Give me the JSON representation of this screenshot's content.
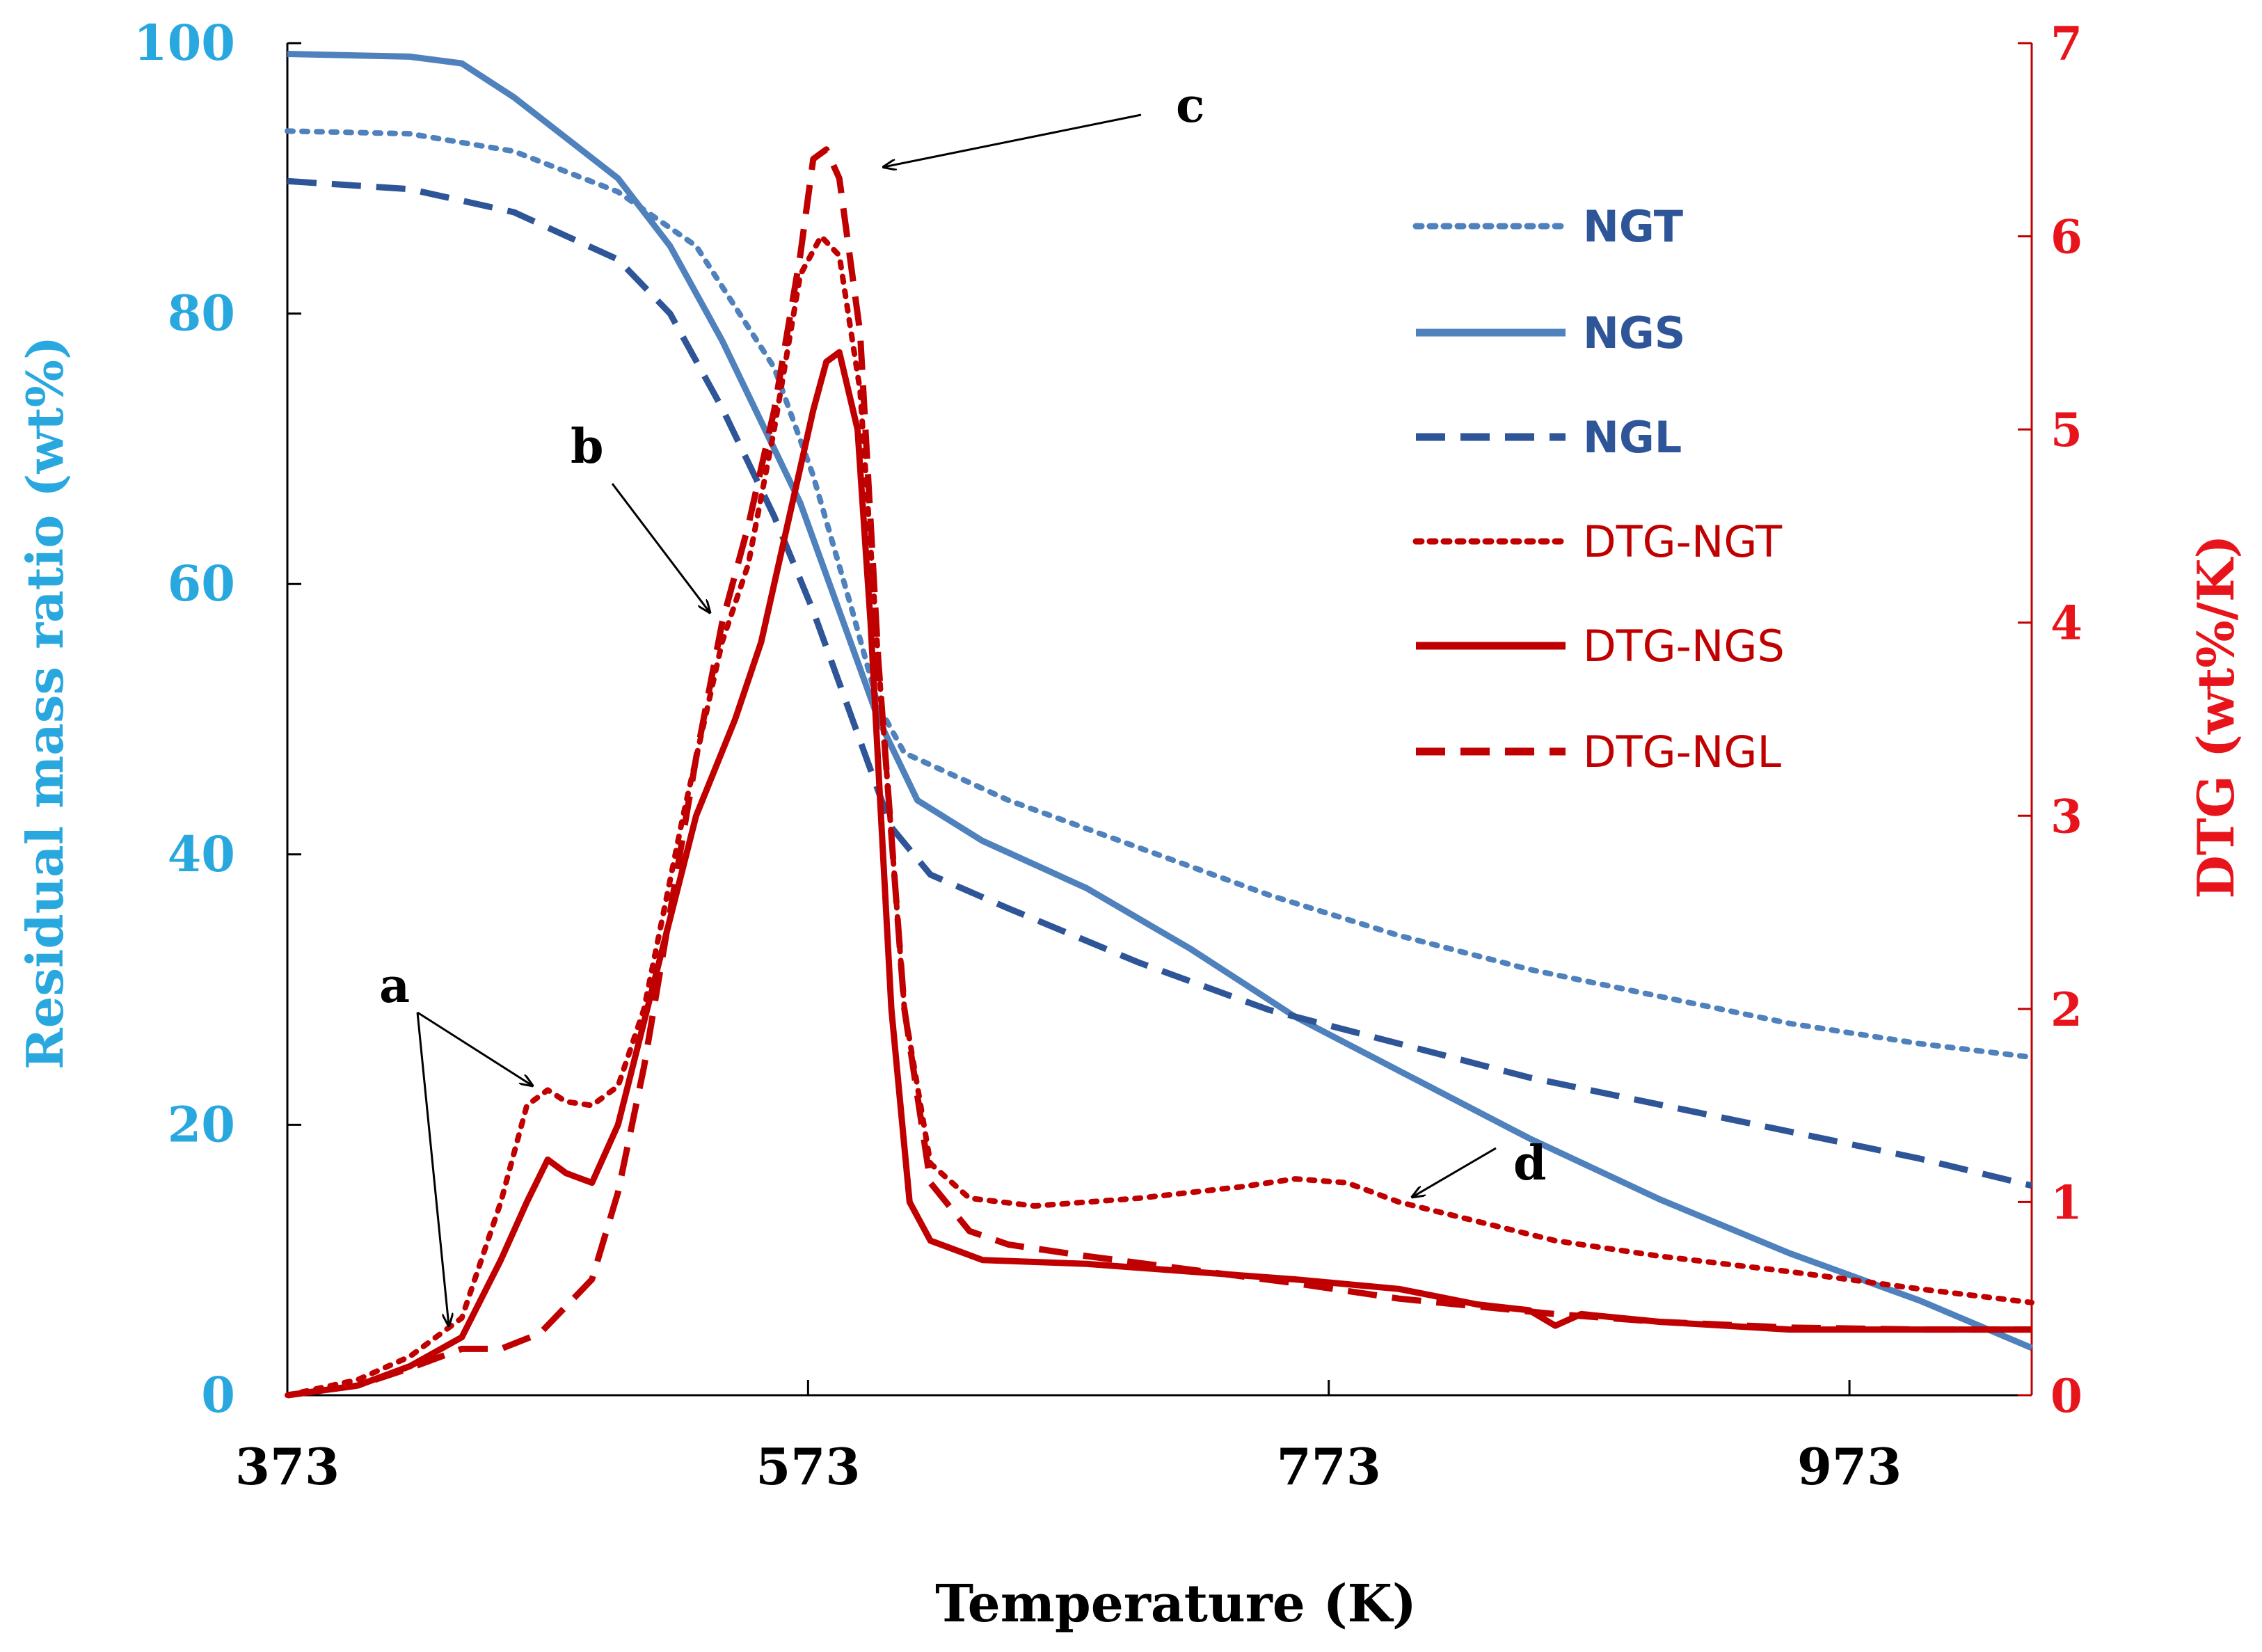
{
  "chart_data": {
    "type": "line",
    "xlabel": "Temperature (K)",
    "ylabel_left": "Residual mass ratio (wt%)",
    "ylabel_right": "DTG (wt%/K)",
    "xlim": [
      373,
      1043
    ],
    "ylim_left": [
      0,
      100
    ],
    "ylim_right": [
      0,
      7
    ],
    "x_ticks": [
      373,
      573,
      773,
      973
    ],
    "y_left_ticks": [
      0,
      20,
      40,
      60,
      80,
      100
    ],
    "y_right_ticks": [
      0,
      1,
      2,
      3,
      4,
      5,
      6,
      7
    ],
    "grid": false,
    "legend_position": "top-right",
    "colors": {
      "tg": "#4f81bd",
      "tg_dark": "#2e5597",
      "dtg": "#c00000",
      "left_axis": "#29a8e0",
      "right_axis": "#e8141b"
    },
    "series": [
      {
        "name": "NGT",
        "axis": "left",
        "style": "dotted",
        "color": "#4f81bd",
        "points": [
          [
            373,
            93.5
          ],
          [
            420,
            93.3
          ],
          [
            460,
            92
          ],
          [
            500,
            89
          ],
          [
            530,
            85
          ],
          [
            560,
            76
          ],
          [
            575,
            68
          ],
          [
            590,
            58
          ],
          [
            600,
            51
          ],
          [
            610,
            47.5
          ],
          [
            650,
            44
          ],
          [
            700,
            40.5
          ],
          [
            750,
            37
          ],
          [
            800,
            34
          ],
          [
            850,
            31.5
          ],
          [
            900,
            29.5
          ],
          [
            950,
            27.5
          ],
          [
            1000,
            26
          ],
          [
            1043,
            25
          ]
        ]
      },
      {
        "name": "NGS",
        "axis": "left",
        "style": "solid",
        "color": "#4f81bd",
        "points": [
          [
            373,
            99.2
          ],
          [
            420,
            99
          ],
          [
            440,
            98.5
          ],
          [
            460,
            96
          ],
          [
            480,
            93
          ],
          [
            500,
            90
          ],
          [
            520,
            85
          ],
          [
            540,
            78
          ],
          [
            555,
            72
          ],
          [
            570,
            66
          ],
          [
            585,
            58
          ],
          [
            600,
            50
          ],
          [
            615,
            44
          ],
          [
            640,
            41
          ],
          [
            680,
            37.5
          ],
          [
            720,
            33
          ],
          [
            760,
            28
          ],
          [
            800,
            24
          ],
          [
            850,
            19
          ],
          [
            900,
            14.5
          ],
          [
            950,
            10.5
          ],
          [
            1000,
            7
          ],
          [
            1043,
            3.5
          ]
        ]
      },
      {
        "name": "NGL",
        "axis": "left",
        "style": "dashed",
        "color": "#2e5597",
        "points": [
          [
            373,
            89.8
          ],
          [
            420,
            89.2
          ],
          [
            460,
            87.5
          ],
          [
            500,
            84
          ],
          [
            520,
            80
          ],
          [
            540,
            73
          ],
          [
            560,
            65
          ],
          [
            575,
            58
          ],
          [
            590,
            50
          ],
          [
            605,
            42
          ],
          [
            620,
            38.5
          ],
          [
            650,
            36
          ],
          [
            700,
            32
          ],
          [
            750,
            28.5
          ],
          [
            800,
            26
          ],
          [
            850,
            23.5
          ],
          [
            900,
            21.5
          ],
          [
            950,
            19.5
          ],
          [
            1000,
            17.5
          ],
          [
            1043,
            15.5
          ]
        ]
      },
      {
        "name": "DTG-NGT",
        "axis": "right",
        "style": "dotted",
        "color": "#c00000",
        "points": [
          [
            373,
            0
          ],
          [
            400,
            0.08
          ],
          [
            420,
            0.2
          ],
          [
            440,
            0.4
          ],
          [
            455,
            1.0
          ],
          [
            465,
            1.5
          ],
          [
            473,
            1.58
          ],
          [
            480,
            1.52
          ],
          [
            490,
            1.5
          ],
          [
            500,
            1.6
          ],
          [
            510,
            2.0
          ],
          [
            525,
            3.0
          ],
          [
            540,
            3.9
          ],
          [
            550,
            4.3
          ],
          [
            560,
            5.0
          ],
          [
            570,
            5.8
          ],
          [
            578,
            6.0
          ],
          [
            585,
            5.9
          ],
          [
            593,
            5.2
          ],
          [
            600,
            3.8
          ],
          [
            610,
            2.0
          ],
          [
            620,
            1.2
          ],
          [
            635,
            1.02
          ],
          [
            660,
            0.98
          ],
          [
            700,
            1.02
          ],
          [
            740,
            1.08
          ],
          [
            760,
            1.12
          ],
          [
            780,
            1.1
          ],
          [
            800,
            1.0
          ],
          [
            830,
            0.9
          ],
          [
            860,
            0.8
          ],
          [
            900,
            0.72
          ],
          [
            950,
            0.64
          ],
          [
            1000,
            0.55
          ],
          [
            1043,
            0.48
          ]
        ]
      },
      {
        "name": "DTG-NGS",
        "axis": "right",
        "style": "solid",
        "color": "#c00000",
        "points": [
          [
            373,
            0
          ],
          [
            400,
            0.05
          ],
          [
            420,
            0.15
          ],
          [
            440,
            0.3
          ],
          [
            455,
            0.7
          ],
          [
            465,
            1.0
          ],
          [
            473,
            1.22
          ],
          [
            480,
            1.15
          ],
          [
            490,
            1.1
          ],
          [
            500,
            1.4
          ],
          [
            515,
            2.2
          ],
          [
            530,
            3.0
          ],
          [
            545,
            3.5
          ],
          [
            555,
            3.9
          ],
          [
            565,
            4.5
          ],
          [
            575,
            5.1
          ],
          [
            580,
            5.35
          ],
          [
            585,
            5.4
          ],
          [
            592,
            5.0
          ],
          [
            597,
            4.0
          ],
          [
            605,
            2.0
          ],
          [
            612,
            1.0
          ],
          [
            620,
            0.8
          ],
          [
            640,
            0.7
          ],
          [
            680,
            0.68
          ],
          [
            720,
            0.64
          ],
          [
            760,
            0.6
          ],
          [
            800,
            0.55
          ],
          [
            830,
            0.47
          ],
          [
            850,
            0.44
          ],
          [
            860,
            0.36
          ],
          [
            870,
            0.42
          ],
          [
            900,
            0.38
          ],
          [
            950,
            0.34
          ],
          [
            1000,
            0.34
          ],
          [
            1043,
            0.34
          ]
        ]
      },
      {
        "name": "DTG-NGL",
        "axis": "right",
        "style": "dashed",
        "color": "#c00000",
        "points": [
          [
            373,
            0
          ],
          [
            400,
            0.05
          ],
          [
            420,
            0.14
          ],
          [
            440,
            0.24
          ],
          [
            455,
            0.24
          ],
          [
            470,
            0.32
          ],
          [
            490,
            0.6
          ],
          [
            500,
            1.05
          ],
          [
            510,
            1.7
          ],
          [
            520,
            2.5
          ],
          [
            530,
            3.3
          ],
          [
            540,
            4.0
          ],
          [
            550,
            4.5
          ],
          [
            560,
            5.1
          ],
          [
            570,
            5.9
          ],
          [
            575,
            6.4
          ],
          [
            580,
            6.45
          ],
          [
            585,
            6.3
          ],
          [
            593,
            5.5
          ],
          [
            600,
            3.8
          ],
          [
            610,
            2.0
          ],
          [
            620,
            1.1
          ],
          [
            635,
            0.85
          ],
          [
            650,
            0.78
          ],
          [
            680,
            0.72
          ],
          [
            720,
            0.65
          ],
          [
            760,
            0.58
          ],
          [
            800,
            0.5
          ],
          [
            830,
            0.46
          ],
          [
            860,
            0.42
          ],
          [
            900,
            0.38
          ],
          [
            950,
            0.35
          ],
          [
            1000,
            0.34
          ],
          [
            1043,
            0.34
          ]
        ]
      }
    ],
    "annotations": [
      {
        "label": "a"
      },
      {
        "label": "b"
      },
      {
        "label": "c"
      },
      {
        "label": "d"
      }
    ]
  }
}
